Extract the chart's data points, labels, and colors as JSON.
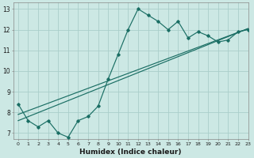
{
  "title": "",
  "xlabel": "Humidex (Indice chaleur)",
  "ylabel": "",
  "bg_color": "#cce8e4",
  "grid_color": "#aaceca",
  "line_color": "#1a6e64",
  "xlim": [
    -0.5,
    23
  ],
  "ylim": [
    6.7,
    13.3
  ],
  "xticks": [
    0,
    1,
    2,
    3,
    4,
    5,
    6,
    7,
    8,
    9,
    10,
    11,
    12,
    13,
    14,
    15,
    16,
    17,
    18,
    19,
    20,
    21,
    22,
    23
  ],
  "yticks": [
    7,
    8,
    9,
    10,
    11,
    12,
    13
  ],
  "wavy_x": [
    0,
    1,
    2,
    3,
    4,
    5,
    6,
    7,
    8,
    9,
    10,
    11,
    12,
    13,
    14,
    15,
    16,
    17,
    18,
    19,
    20,
    21,
    22,
    23
  ],
  "wavy_y": [
    8.4,
    7.6,
    7.3,
    7.6,
    7.0,
    6.8,
    7.6,
    7.8,
    8.3,
    9.6,
    10.8,
    12.0,
    13.0,
    12.7,
    12.4,
    12.0,
    12.4,
    11.6,
    11.9,
    11.7,
    11.4,
    11.5,
    11.9,
    12.0
  ],
  "line1_x": [
    0,
    23
  ],
  "line1_y": [
    7.9,
    12.05
  ],
  "line2_x": [
    0,
    23
  ],
  "line2_y": [
    7.6,
    12.05
  ],
  "marker": "D",
  "markersize": 1.8,
  "linewidth": 0.85
}
